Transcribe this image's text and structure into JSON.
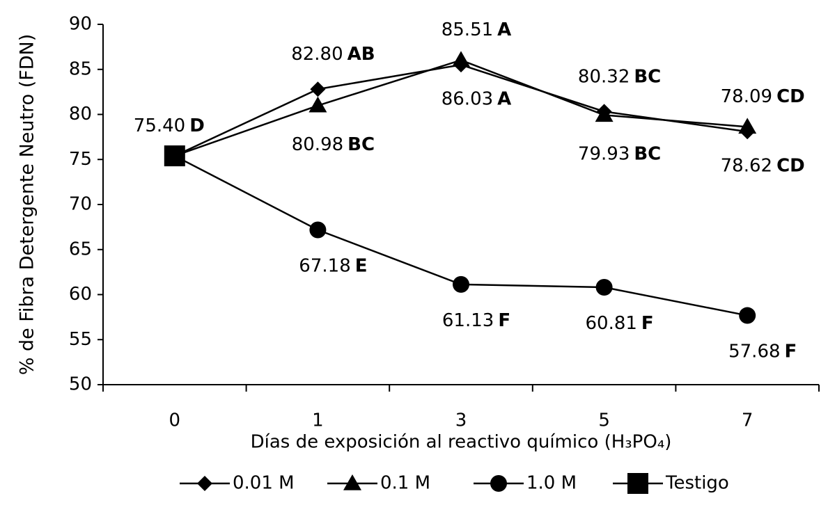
{
  "chart_data": {
    "type": "line",
    "y_label": "% de  Fibra Detergente Neutro (FDN)",
    "x_label": "Días de exposición al reactivo químico (H₃PO₄)",
    "categories": [
      "0",
      "1",
      "3",
      "5",
      "7"
    ],
    "ylim": [
      50,
      90
    ],
    "yticks": [
      50,
      55,
      60,
      65,
      70,
      75,
      80,
      85,
      90
    ],
    "legend": "bottom",
    "series": [
      {
        "name": "0.01 M",
        "color": "#000000",
        "marker": "diamond",
        "values": [
          75.4,
          82.8,
          85.51,
          80.32,
          78.09
        ],
        "value_labels": [
          null,
          "82.80",
          "85.51",
          "80.32",
          "78.09"
        ],
        "letters": [
          null,
          "AB",
          "A",
          "BC",
          "CD"
        ]
      },
      {
        "name": "0.1 M",
        "color": "#000000",
        "marker": "triangle",
        "values": [
          75.4,
          80.98,
          86.03,
          79.93,
          78.62
        ],
        "value_labels": [
          null,
          "80.98",
          "86.03",
          "79.93",
          "78.62"
        ],
        "letters": [
          null,
          "BC",
          "A",
          "BC",
          "CD"
        ]
      },
      {
        "name": "1.0 M",
        "color": "#000000",
        "marker": "circle",
        "values": [
          75.4,
          67.18,
          61.13,
          60.81,
          57.68
        ],
        "value_labels": [
          null,
          "67.18",
          "61.13",
          "60.81",
          "57.68"
        ],
        "letters": [
          null,
          "E",
          "F",
          "F",
          "F"
        ]
      },
      {
        "name": "Testigo",
        "color": "#000000",
        "marker": "square",
        "values": [
          75.4,
          null,
          null,
          null,
          null
        ],
        "value_labels": [
          "75.40",
          null,
          null,
          null,
          null
        ],
        "letters": [
          "D",
          null,
          null,
          null,
          null
        ]
      }
    ]
  }
}
